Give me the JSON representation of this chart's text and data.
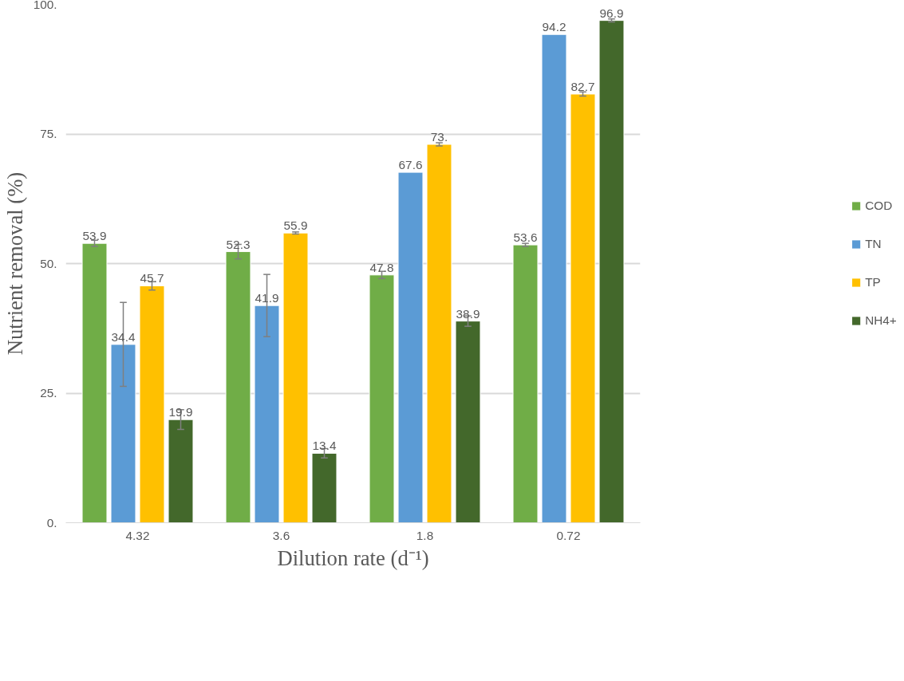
{
  "chart_data": {
    "type": "bar",
    "xlabel": "Dilution rate (d⁻¹)",
    "ylabel": "Nutrient removal (%)",
    "categories": [
      "4.32",
      "3.6",
      "1.8",
      "0.72"
    ],
    "series": [
      {
        "name": "COD",
        "color": "#70ad47",
        "values": [
          53.9,
          52.3,
          47.8,
          53.6
        ],
        "errors": [
          0.6,
          1.4,
          0.7,
          0.3
        ],
        "value_labels": [
          "53.9",
          "52.3",
          "47.8",
          "53.6"
        ]
      },
      {
        "name": "TN",
        "color": "#5b9bd5",
        "values": [
          34.4,
          41.9,
          67.6,
          94.2
        ],
        "errors": [
          8.1,
          6,
          null,
          null
        ],
        "value_labels": [
          "34.4",
          "41.9",
          "67.6",
          "94.2"
        ]
      },
      {
        "name": "TP",
        "color": "#ffc000",
        "values": [
          45.7,
          55.9,
          73.0,
          82.7
        ],
        "errors": [
          0.8,
          0.2,
          0.3,
          0.4
        ],
        "value_labels": [
          "45.7",
          "55.9",
          "73.",
          "82.7"
        ]
      },
      {
        "name": "NH4+",
        "color": "#43682b",
        "values": [
          19.9,
          13.4,
          38.9,
          96.9
        ],
        "errors": [
          1.9,
          0.9,
          1.0,
          0.3
        ],
        "value_labels": [
          "19.9",
          "13.4",
          "38.9",
          "96.9"
        ]
      }
    ],
    "ylim": [
      0,
      100
    ],
    "yticks": [
      {
        "value": 0,
        "label": "0."
      },
      {
        "value": 25,
        "label": "25."
      },
      {
        "value": 50,
        "label": "50."
      },
      {
        "value": 75,
        "label": "75."
      },
      {
        "value": 100,
        "label": "100."
      }
    ],
    "grid": "y",
    "legend": "right"
  }
}
